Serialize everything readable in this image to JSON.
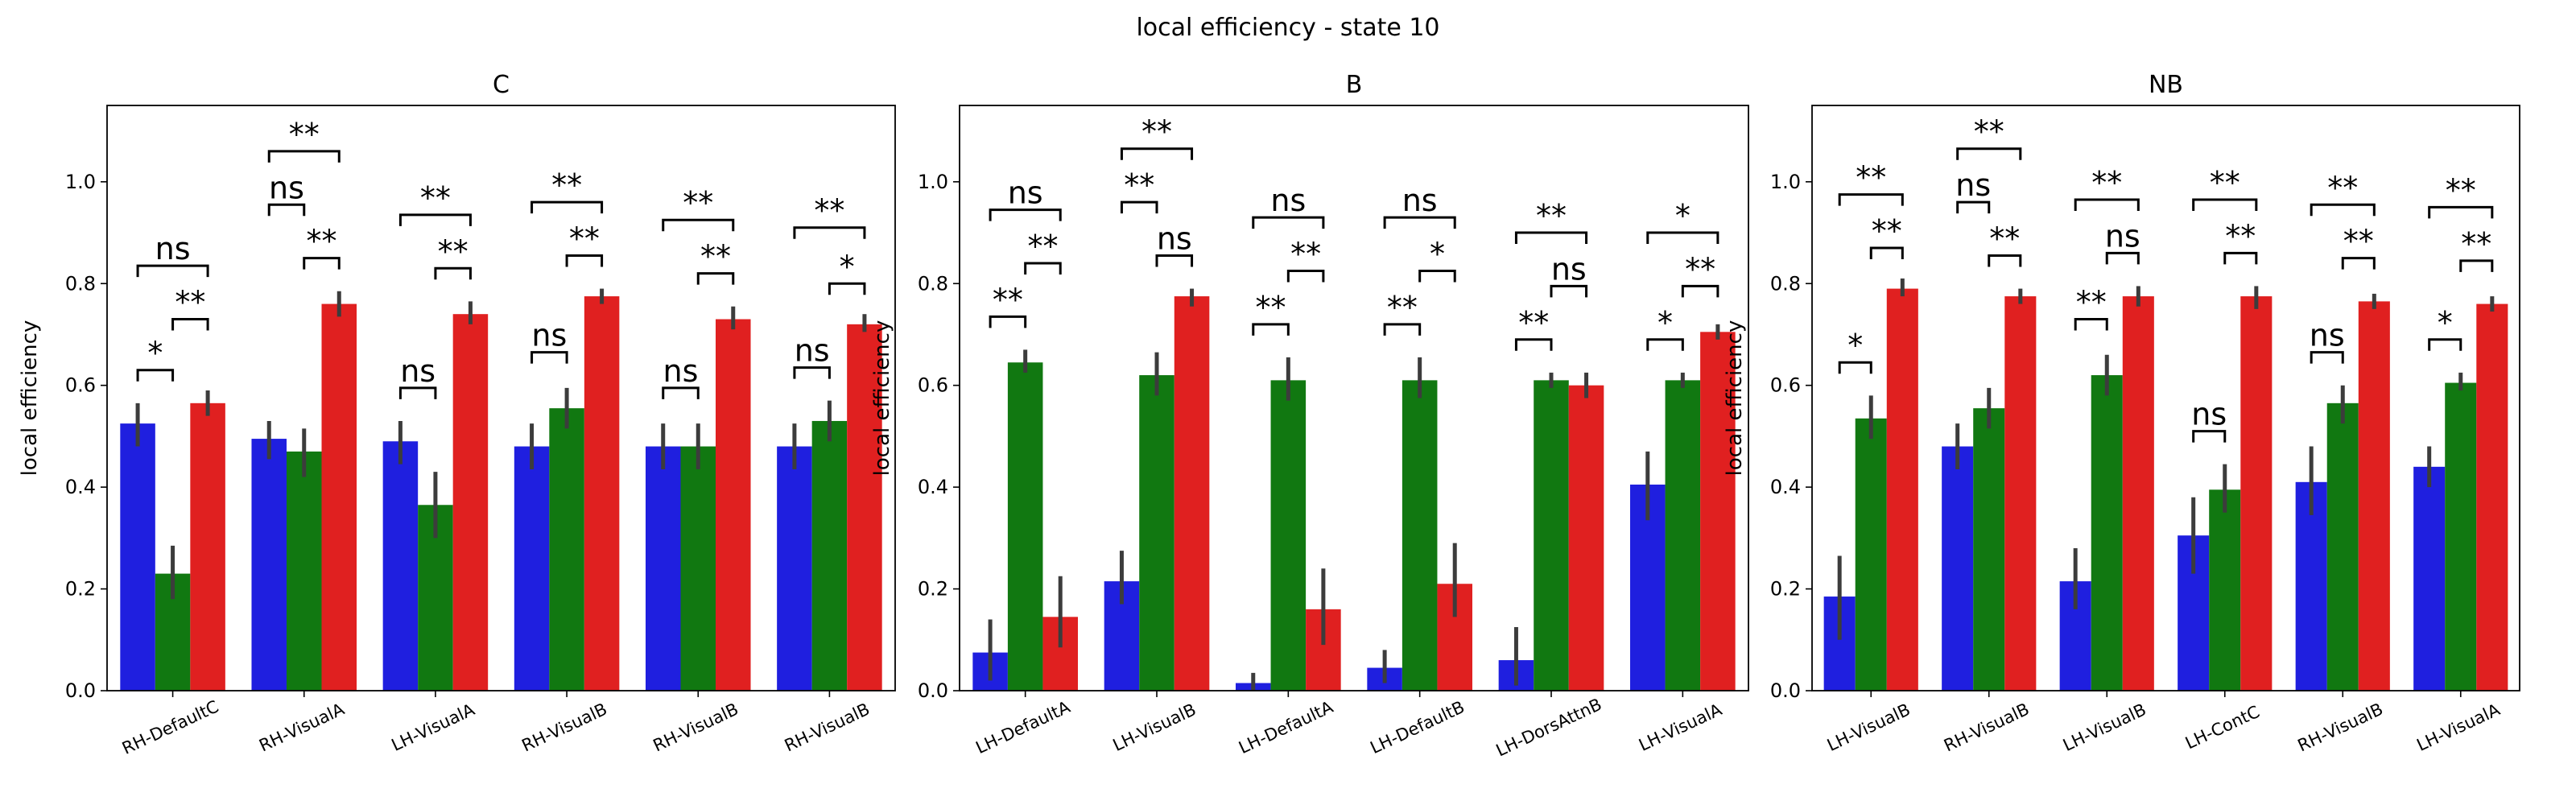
{
  "figure": {
    "title": "local efficiency - state 10",
    "colors": [
      "#1f1fdf",
      "#117811",
      "#e02020"
    ]
  },
  "chart_data": [
    {
      "type": "bar",
      "title": "C",
      "ylabel": "local efficiency",
      "ylim": [
        0,
        1.15
      ],
      "yticks": [
        "0.0",
        "0.2",
        "0.4",
        "0.6",
        "0.8",
        "1.0"
      ],
      "categories": [
        "RH-DefaultC",
        "RH-VisualA",
        "LH-VisualA",
        "RH-VisualB",
        "RH-VisualB",
        "RH-VisualB"
      ],
      "series": [
        {
          "values": [
            0.525,
            0.495,
            0.49,
            0.48,
            0.48,
            0.48
          ],
          "err_low": [
            0.48,
            0.455,
            0.445,
            0.435,
            0.435,
            0.435
          ],
          "err_high": [
            0.565,
            0.53,
            0.53,
            0.525,
            0.525,
            0.525
          ]
        },
        {
          "values": [
            0.23,
            0.47,
            0.365,
            0.555,
            0.48,
            0.53
          ],
          "err_low": [
            0.18,
            0.42,
            0.3,
            0.515,
            0.435,
            0.49
          ],
          "err_high": [
            0.285,
            0.515,
            0.43,
            0.595,
            0.525,
            0.57
          ]
        },
        {
          "values": [
            0.565,
            0.76,
            0.74,
            0.775,
            0.73,
            0.72
          ],
          "err_low": [
            0.54,
            0.735,
            0.72,
            0.76,
            0.71,
            0.705
          ],
          "err_high": [
            0.59,
            0.785,
            0.765,
            0.79,
            0.755,
            0.74
          ]
        }
      ],
      "annotations": [
        {
          "cat": 0,
          "pair": "01",
          "level": 0.63,
          "label": "*"
        },
        {
          "cat": 0,
          "pair": "12",
          "level": 0.73,
          "label": "**"
        },
        {
          "cat": 0,
          "pair": "02",
          "level": 0.835,
          "label": "ns"
        },
        {
          "cat": 1,
          "pair": "12",
          "level": 0.85,
          "label": "**"
        },
        {
          "cat": 1,
          "pair": "01",
          "level": 0.955,
          "label": "ns"
        },
        {
          "cat": 1,
          "pair": "02",
          "level": 1.06,
          "label": "**"
        },
        {
          "cat": 2,
          "pair": "01",
          "level": 0.595,
          "label": "ns"
        },
        {
          "cat": 2,
          "pair": "12",
          "level": 0.83,
          "label": "**"
        },
        {
          "cat": 2,
          "pair": "02",
          "level": 0.935,
          "label": "**"
        },
        {
          "cat": 3,
          "pair": "01",
          "level": 0.665,
          "label": "ns"
        },
        {
          "cat": 3,
          "pair": "12",
          "level": 0.855,
          "label": "**"
        },
        {
          "cat": 3,
          "pair": "02",
          "level": 0.96,
          "label": "**"
        },
        {
          "cat": 4,
          "pair": "01",
          "level": 0.595,
          "label": "ns"
        },
        {
          "cat": 4,
          "pair": "12",
          "level": 0.82,
          "label": "**"
        },
        {
          "cat": 4,
          "pair": "02",
          "level": 0.925,
          "label": "**"
        },
        {
          "cat": 5,
          "pair": "01",
          "level": 0.635,
          "label": "ns"
        },
        {
          "cat": 5,
          "pair": "12",
          "level": 0.8,
          "label": "*"
        },
        {
          "cat": 5,
          "pair": "02",
          "level": 0.91,
          "label": "**"
        }
      ]
    },
    {
      "type": "bar",
      "title": "B",
      "ylabel": "local efficiency",
      "ylim": [
        0,
        1.15
      ],
      "yticks": [
        "0.0",
        "0.2",
        "0.4",
        "0.6",
        "0.8",
        "1.0"
      ],
      "categories": [
        "LH-DefaultA",
        "LH-VisualB",
        "LH-DefaultA",
        "LH-DefaultB",
        "LH-DorsAttnB",
        "LH-VisualA"
      ],
      "series": [
        {
          "values": [
            0.075,
            0.215,
            0.015,
            0.045,
            0.06,
            0.405
          ],
          "err_low": [
            0.02,
            0.17,
            0.0,
            0.015,
            0.01,
            0.335
          ],
          "err_high": [
            0.14,
            0.275,
            0.035,
            0.08,
            0.125,
            0.47
          ]
        },
        {
          "values": [
            0.645,
            0.62,
            0.61,
            0.61,
            0.61,
            0.61
          ],
          "err_low": [
            0.625,
            0.58,
            0.57,
            0.575,
            0.595,
            0.595
          ],
          "err_high": [
            0.67,
            0.665,
            0.655,
            0.655,
            0.625,
            0.625
          ]
        },
        {
          "values": [
            0.145,
            0.775,
            0.16,
            0.21,
            0.6,
            0.705
          ],
          "err_low": [
            0.085,
            0.755,
            0.09,
            0.145,
            0.575,
            0.69
          ],
          "err_high": [
            0.225,
            0.79,
            0.24,
            0.29,
            0.625,
            0.72
          ]
        }
      ],
      "annotations": [
        {
          "cat": 0,
          "pair": "01",
          "level": 0.735,
          "label": "**"
        },
        {
          "cat": 0,
          "pair": "12",
          "level": 0.84,
          "label": "**"
        },
        {
          "cat": 0,
          "pair": "02",
          "level": 0.945,
          "label": "ns"
        },
        {
          "cat": 1,
          "pair": "12",
          "level": 0.855,
          "label": "ns"
        },
        {
          "cat": 1,
          "pair": "01",
          "level": 0.96,
          "label": "**"
        },
        {
          "cat": 1,
          "pair": "02",
          "level": 1.065,
          "label": "**"
        },
        {
          "cat": 2,
          "pair": "01",
          "level": 0.72,
          "label": "**"
        },
        {
          "cat": 2,
          "pair": "12",
          "level": 0.825,
          "label": "**"
        },
        {
          "cat": 2,
          "pair": "02",
          "level": 0.93,
          "label": "ns"
        },
        {
          "cat": 3,
          "pair": "01",
          "level": 0.72,
          "label": "**"
        },
        {
          "cat": 3,
          "pair": "12",
          "level": 0.825,
          "label": "*"
        },
        {
          "cat": 3,
          "pair": "02",
          "level": 0.93,
          "label": "ns"
        },
        {
          "cat": 4,
          "pair": "01",
          "level": 0.69,
          "label": "**"
        },
        {
          "cat": 4,
          "pair": "12",
          "level": 0.795,
          "label": "ns"
        },
        {
          "cat": 4,
          "pair": "02",
          "level": 0.9,
          "label": "**"
        },
        {
          "cat": 5,
          "pair": "01",
          "level": 0.69,
          "label": "*"
        },
        {
          "cat": 5,
          "pair": "12",
          "level": 0.795,
          "label": "**"
        },
        {
          "cat": 5,
          "pair": "02",
          "level": 0.9,
          "label": "*"
        }
      ]
    },
    {
      "type": "bar",
      "title": "NB",
      "ylabel": "local efficiency",
      "ylim": [
        0,
        1.15
      ],
      "yticks": [
        "0.0",
        "0.2",
        "0.4",
        "0.6",
        "0.8",
        "1.0"
      ],
      "categories": [
        "LH-VisualB",
        "RH-VisualB",
        "LH-VisualB",
        "LH-ContC",
        "RH-VisualB",
        "LH-VisualA"
      ],
      "series": [
        {
          "values": [
            0.185,
            0.48,
            0.215,
            0.305,
            0.41,
            0.44
          ],
          "err_low": [
            0.1,
            0.435,
            0.16,
            0.23,
            0.345,
            0.4
          ],
          "err_high": [
            0.265,
            0.525,
            0.28,
            0.38,
            0.48,
            0.48
          ]
        },
        {
          "values": [
            0.535,
            0.555,
            0.62,
            0.395,
            0.565,
            0.605
          ],
          "err_low": [
            0.495,
            0.515,
            0.58,
            0.35,
            0.525,
            0.59
          ],
          "err_high": [
            0.58,
            0.595,
            0.66,
            0.445,
            0.6,
            0.625
          ]
        },
        {
          "values": [
            0.79,
            0.775,
            0.775,
            0.775,
            0.765,
            0.76
          ],
          "err_low": [
            0.775,
            0.76,
            0.755,
            0.75,
            0.75,
            0.745
          ],
          "err_high": [
            0.81,
            0.79,
            0.795,
            0.795,
            0.78,
            0.775
          ]
        }
      ],
      "annotations": [
        {
          "cat": 0,
          "pair": "01",
          "level": 0.645,
          "label": "*"
        },
        {
          "cat": 0,
          "pair": "12",
          "level": 0.87,
          "label": "**"
        },
        {
          "cat": 0,
          "pair": "02",
          "level": 0.975,
          "label": "**"
        },
        {
          "cat": 1,
          "pair": "12",
          "level": 0.855,
          "label": "**"
        },
        {
          "cat": 1,
          "pair": "01",
          "level": 0.96,
          "label": "ns"
        },
        {
          "cat": 1,
          "pair": "02",
          "level": 1.065,
          "label": "**"
        },
        {
          "cat": 2,
          "pair": "01",
          "level": 0.73,
          "label": "**"
        },
        {
          "cat": 2,
          "pair": "12",
          "level": 0.86,
          "label": "ns"
        },
        {
          "cat": 2,
          "pair": "02",
          "level": 0.965,
          "label": "**"
        },
        {
          "cat": 3,
          "pair": "01",
          "level": 0.51,
          "label": "ns"
        },
        {
          "cat": 3,
          "pair": "12",
          "level": 0.86,
          "label": "**"
        },
        {
          "cat": 3,
          "pair": "02",
          "level": 0.965,
          "label": "**"
        },
        {
          "cat": 4,
          "pair": "01",
          "level": 0.665,
          "label": "ns"
        },
        {
          "cat": 4,
          "pair": "12",
          "level": 0.85,
          "label": "**"
        },
        {
          "cat": 4,
          "pair": "02",
          "level": 0.955,
          "label": "**"
        },
        {
          "cat": 5,
          "pair": "01",
          "level": 0.69,
          "label": "*"
        },
        {
          "cat": 5,
          "pair": "12",
          "level": 0.845,
          "label": "**"
        },
        {
          "cat": 5,
          "pair": "02",
          "level": 0.95,
          "label": "**"
        }
      ]
    }
  ]
}
